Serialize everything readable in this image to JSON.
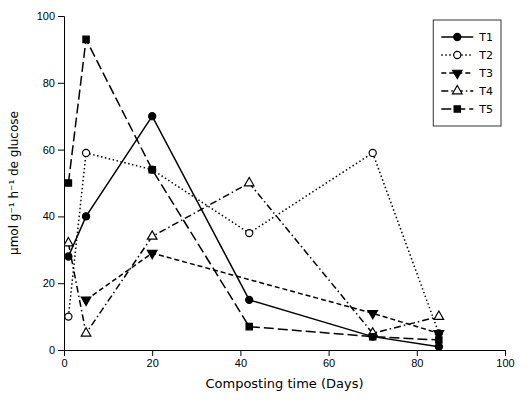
{
  "chart_data": {
    "type": "line",
    "x_label": "Composting time (Days)",
    "y_label": "μmol g⁻¹ h⁻¹ de glucose",
    "xlim": [
      0,
      100
    ],
    "ylim": [
      0,
      100
    ],
    "xticks": [
      0,
      20,
      40,
      60,
      80,
      100
    ],
    "yticks": [
      0,
      20,
      40,
      60,
      80,
      100
    ],
    "grid": false,
    "legend": "upper right",
    "series": [
      {
        "name": "T1",
        "color": "#000000",
        "marker": "circle",
        "line_style": "solid",
        "x": [
          1,
          5,
          20,
          42,
          70,
          85
        ],
        "values": [
          28,
          40,
          70,
          15,
          4,
          1
        ]
      },
      {
        "name": "T2",
        "color": "#000000",
        "marker": "circle-open",
        "line_style": "dotted",
        "x": [
          1,
          5,
          20,
          42,
          70,
          85
        ],
        "values": [
          10,
          59,
          54,
          35,
          59,
          5
        ]
      },
      {
        "name": "T3",
        "color": "#000000",
        "marker": "triangle-down",
        "line_style": "dashed",
        "x": [
          5,
          20,
          70,
          85
        ],
        "values": [
          15,
          29,
          11,
          5
        ]
      },
      {
        "name": "T4",
        "color": "#000000",
        "marker": "triangle-up-open",
        "line_style": "dashdot",
        "x": [
          1,
          5,
          20,
          42,
          70,
          85
        ],
        "values": [
          32,
          5,
          34,
          50,
          5,
          10
        ]
      },
      {
        "name": "T5",
        "color": "#000000",
        "marker": "square",
        "line_style": "longdash",
        "x": [
          1,
          5,
          20,
          42,
          70,
          85
        ],
        "values": [
          50,
          93,
          54,
          7,
          4,
          3
        ]
      }
    ]
  }
}
